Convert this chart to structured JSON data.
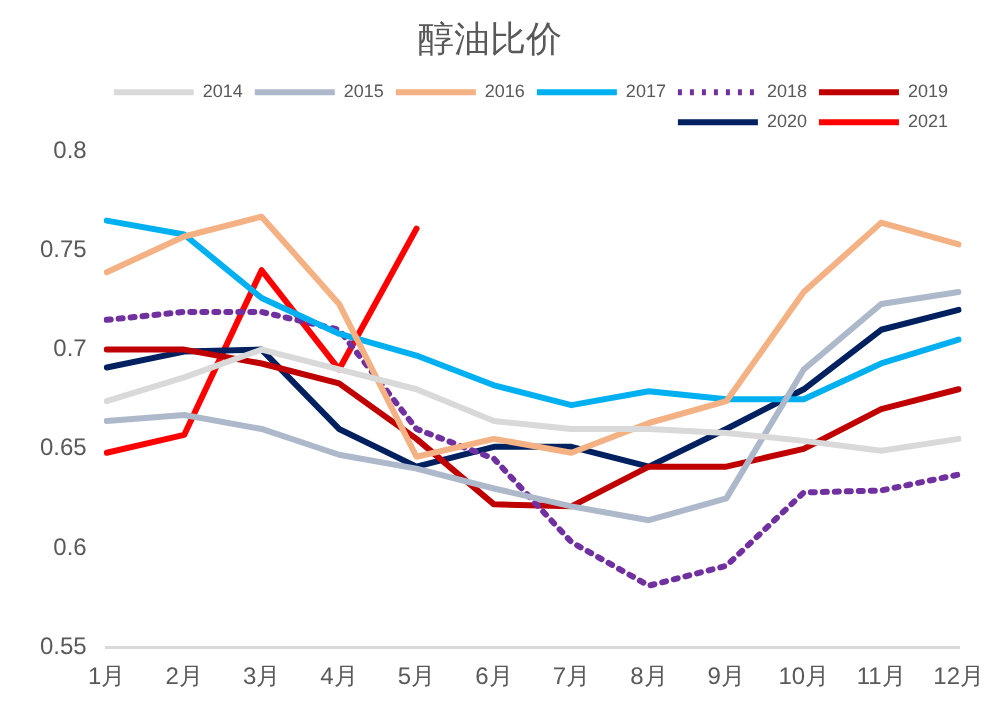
{
  "chart_data": {
    "type": "line",
    "title": "醇油比价",
    "categories": [
      "1月",
      "2月",
      "3月",
      "4月",
      "5月",
      "6月",
      "7月",
      "8月",
      "9月",
      "10月",
      "11月",
      "12月"
    ],
    "series": [
      {
        "name": "2014",
        "color": "#d9d9d9",
        "values": [
          0.674,
          0.686,
          0.7,
          0.69,
          0.68,
          0.664,
          0.66,
          0.66,
          0.658,
          0.654,
          0.649,
          0.655
        ]
      },
      {
        "name": "2015",
        "color": "#adb9ca",
        "values": [
          0.664,
          0.667,
          0.66,
          0.647,
          0.64,
          0.63,
          0.621,
          0.614,
          0.625,
          0.69,
          0.723,
          0.729
        ]
      },
      {
        "name": "2016",
        "color": "#f4b183",
        "values": [
          0.739,
          0.757,
          0.767,
          0.723,
          0.646,
          0.655,
          0.648,
          0.663,
          0.674,
          0.729,
          0.764,
          0.753
        ]
      },
      {
        "name": "2017",
        "color": "#00b0f0",
        "values": [
          0.765,
          0.758,
          0.726,
          0.708,
          0.697,
          0.682,
          0.672,
          0.679,
          0.675,
          0.675,
          0.693,
          0.705
        ]
      },
      {
        "name": "2018",
        "color": "#7030a0",
        "line_style": "dotted",
        "values": [
          0.715,
          0.719,
          0.719,
          0.71,
          0.66,
          0.645,
          0.603,
          0.581,
          0.591,
          0.628,
          0.629,
          0.637
        ]
      },
      {
        "name": "2019",
        "color": "#c00000",
        "values": [
          0.7,
          0.7,
          0.693,
          0.683,
          0.655,
          0.622,
          0.621,
          0.641,
          0.641,
          0.65,
          0.67,
          0.68
        ]
      },
      {
        "name": "2020",
        "color": "#002060",
        "values": [
          0.691,
          0.699,
          0.7,
          0.66,
          0.641,
          0.651,
          0.651,
          0.641,
          0.66,
          0.68,
          0.71,
          0.72
        ]
      },
      {
        "name": "2021",
        "color": "#ff0000",
        "values": [
          0.648,
          0.657,
          0.74,
          0.69,
          0.761,
          null,
          null,
          null,
          null,
          null,
          null,
          null
        ]
      }
    ],
    "ylim": [
      0.55,
      0.8
    ],
    "yticks": [
      0.55,
      0.6,
      0.65,
      0.7,
      0.75,
      0.8
    ],
    "grid": false,
    "legend": "top right",
    "line_style": "solid",
    "marker": "none"
  }
}
